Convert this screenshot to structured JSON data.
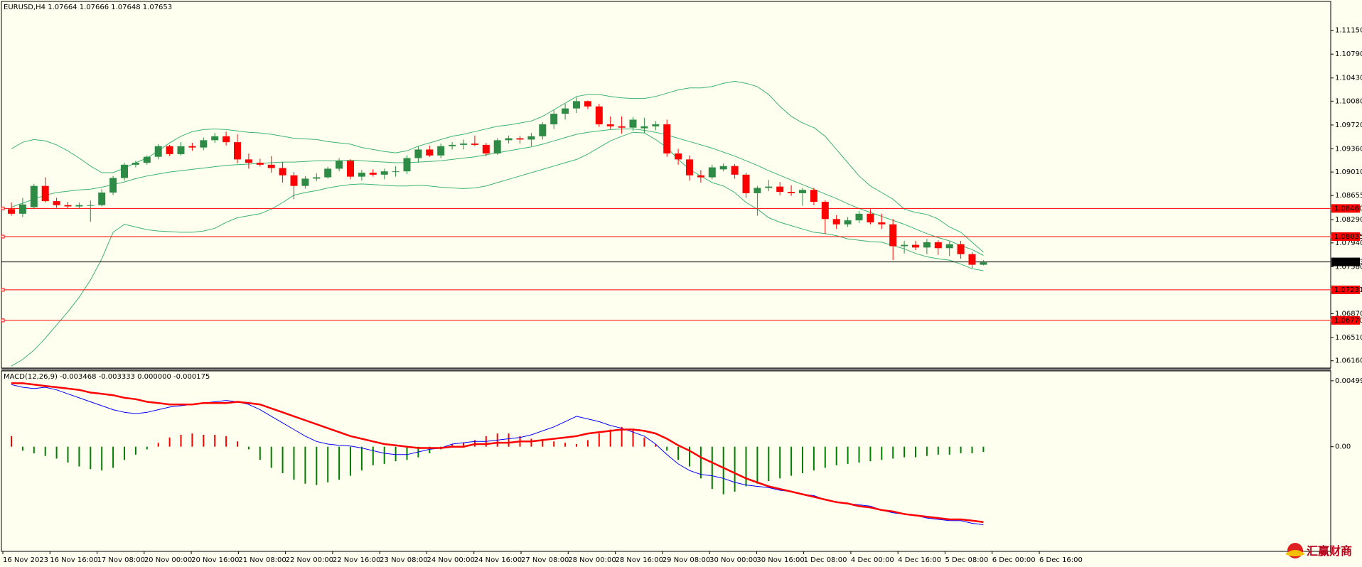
{
  "symbol_header": "EURUSD,H4  1.07664 1.07666 1.07648 1.07653",
  "macd_header": "MACD(12,26,9) -0.003468 -0.003333 0.000000 -0.000175",
  "brand_logo_text": "汇赢财商",
  "colors": {
    "background": "#fffff0",
    "bull": "#2e8b45",
    "bear": "#ff0000",
    "bands": "#3cb371",
    "level": "#ff0000",
    "macd_line": "#0000ff",
    "signal_line": "#ff0000",
    "hist_pos": "#ff0000",
    "hist_neg": "#008000"
  },
  "chart_data": [
    {
      "type": "candlestick",
      "name": "EURUSD,H4",
      "x_labels": [
        "16 Nov 2023",
        "16 Nov 16:00",
        "17 Nov 08:00",
        "20 Nov 00:00",
        "20 Nov 16:00",
        "21 Nov 08:00",
        "22 Nov 00:00",
        "22 Nov 16:00",
        "23 Nov 08:00",
        "24 Nov 00:00",
        "24 Nov 16:00",
        "27 Nov 08:00",
        "28 Nov 00:00",
        "28 Nov 16:00",
        "29 Nov 08:00",
        "30 Nov 00:00",
        "30 Nov 16:00",
        "1 Dec 08:00",
        "4 Dec 00:00",
        "4 Dec 16:00",
        "5 Dec 08:00",
        "6 Dec 00:00",
        "6 Dec 16:00"
      ],
      "y_ticks": [
        "1.11150",
        "1.10790",
        "1.10430",
        "1.10080",
        "1.09720",
        "1.09360",
        "1.09010",
        "1.08655",
        "1.08290",
        "1.07940",
        "1.07580",
        "1.06870",
        "1.06510",
        "1.06160"
      ],
      "ylim": [
        1.0605,
        1.115
      ],
      "current_price": "1.07653",
      "levels": [
        "1.08460",
        "1.08035",
        "1.07231",
        "1.06770"
      ],
      "candles": [
        [
          1.0845,
          1.0855,
          1.0835,
          1.0838
        ],
        [
          1.0838,
          1.0862,
          1.0833,
          1.0852
        ],
        [
          1.0848,
          1.0883,
          1.0845,
          1.088
        ],
        [
          1.088,
          1.0893,
          1.0855,
          1.0857
        ],
        [
          1.0857,
          1.0862,
          1.0847,
          1.0851
        ],
        [
          1.0851,
          1.0856,
          1.0846,
          1.0849
        ],
        [
          1.0849,
          1.0855,
          1.0845,
          1.0851
        ],
        [
          1.085,
          1.0858,
          1.0826,
          1.0851
        ],
        [
          1.0851,
          1.0875,
          1.0849,
          1.087
        ],
        [
          1.087,
          1.0895,
          1.0866,
          1.0892
        ],
        [
          1.0892,
          1.0915,
          1.0888,
          1.0912
        ],
        [
          1.0912,
          1.0918,
          1.0908,
          1.0915
        ],
        [
          1.0915,
          1.0926,
          1.0912,
          1.0924
        ],
        [
          1.0924,
          1.0943,
          1.092,
          1.094
        ],
        [
          1.094,
          1.0942,
          1.0925,
          1.0928
        ],
        [
          1.0928,
          1.0946,
          1.0926,
          1.094
        ],
        [
          1.094,
          1.0945,
          1.0933,
          1.0938
        ],
        [
          1.0938,
          1.0953,
          1.0934,
          1.0949
        ],
        [
          1.0949,
          1.096,
          1.0945,
          1.0955
        ],
        [
          1.0955,
          1.0962,
          1.0941,
          1.0946
        ],
        [
          1.0946,
          1.0958,
          1.0914,
          1.092
        ],
        [
          1.092,
          1.0929,
          1.0906,
          1.0915
        ],
        [
          1.0915,
          1.0921,
          1.0909,
          1.0912
        ],
        [
          1.0912,
          1.0925,
          1.09,
          1.0907
        ],
        [
          1.0907,
          1.0916,
          1.0885,
          1.0896
        ],
        [
          1.0896,
          1.0901,
          1.086,
          1.088
        ],
        [
          1.088,
          1.0895,
          1.0876,
          1.0891
        ],
        [
          1.0891,
          1.0899,
          1.0887,
          1.0893
        ],
        [
          1.0893,
          1.0909,
          1.0891,
          1.0906
        ],
        [
          1.0906,
          1.0922,
          1.0902,
          1.0918
        ],
        [
          1.0918,
          1.092,
          1.089,
          1.0894
        ],
        [
          1.0894,
          1.0904,
          1.0888,
          1.09
        ],
        [
          1.09,
          1.0905,
          1.0894,
          1.0897
        ],
        [
          1.0897,
          1.0906,
          1.089,
          1.0902
        ],
        [
          1.0902,
          1.091,
          1.0894,
          1.0902
        ],
        [
          1.0902,
          1.0926,
          1.0898,
          1.0922
        ],
        [
          1.0922,
          1.094,
          1.0915,
          1.0935
        ],
        [
          1.0935,
          1.0941,
          1.0924,
          1.0926
        ],
        [
          1.0926,
          1.0944,
          1.0922,
          1.094
        ],
        [
          1.094,
          1.0946,
          1.0935,
          1.0942
        ],
        [
          1.0942,
          1.095,
          1.0935,
          1.0944
        ],
        [
          1.0944,
          1.0956,
          1.094,
          1.0942
        ],
        [
          1.0942,
          1.0945,
          1.0925,
          1.0929
        ],
        [
          1.0929,
          1.0952,
          1.0927,
          1.0949
        ],
        [
          1.0949,
          1.0956,
          1.0944,
          1.0952
        ],
        [
          1.0952,
          1.0956,
          1.0944,
          1.095
        ],
        [
          1.095,
          1.096,
          1.094,
          1.0955
        ],
        [
          1.0955,
          1.0976,
          1.095,
          1.0973
        ],
        [
          1.0973,
          1.0995,
          1.0966,
          1.0989
        ],
        [
          1.0989,
          1.1004,
          1.098,
          1.0997
        ],
        [
          1.0997,
          1.1014,
          1.099,
          1.1008
        ],
        [
          1.1008,
          1.1009,
          1.0996,
          1.1
        ],
        [
          1.1,
          1.1004,
          1.0969,
          1.0973
        ],
        [
          1.0973,
          1.0985,
          1.0966,
          1.097
        ],
        [
          1.097,
          1.0985,
          1.0959,
          1.0968
        ],
        [
          1.0968,
          1.0984,
          1.0963,
          1.098
        ],
        [
          1.0967,
          1.0983,
          1.096,
          1.097
        ],
        [
          1.097,
          1.0978,
          1.0964,
          1.0973
        ],
        [
          1.0973,
          1.098,
          1.0924,
          1.0929
        ],
        [
          1.0929,
          1.0936,
          1.0912,
          1.092
        ],
        [
          1.092,
          1.0926,
          1.0888,
          1.0896
        ],
        [
          1.0896,
          1.0904,
          1.0885,
          1.0893
        ],
        [
          1.0893,
          1.0912,
          1.089,
          1.0908
        ],
        [
          1.0905,
          1.0914,
          1.0902,
          1.091
        ],
        [
          1.091,
          1.0913,
          1.0891,
          1.0897
        ],
        [
          1.0897,
          1.09,
          1.0862,
          1.0869
        ],
        [
          1.0869,
          1.088,
          1.0835,
          1.0877
        ],
        [
          1.0877,
          1.0889,
          1.0872,
          1.0879
        ],
        [
          1.0879,
          1.0886,
          1.0866,
          1.0871
        ],
        [
          1.0871,
          1.0881,
          1.0865,
          1.0869
        ],
        [
          1.0869,
          1.0877,
          1.085,
          1.0874
        ],
        [
          1.0874,
          1.0877,
          1.0851,
          1.0856
        ],
        [
          1.0856,
          1.0858,
          1.0808,
          1.083
        ],
        [
          1.083,
          1.0836,
          1.0815,
          1.0822
        ],
        [
          1.0822,
          1.0833,
          1.0818,
          1.0828
        ],
        [
          1.0828,
          1.0842,
          1.0824,
          1.0838
        ],
        [
          1.0838,
          1.0845,
          1.0822,
          1.0825
        ],
        [
          1.0825,
          1.0838,
          1.0815,
          1.0822
        ],
        [
          1.0822,
          1.083,
          1.0768,
          1.0789
        ],
        [
          1.0789,
          1.0797,
          1.0778,
          1.0791
        ],
        [
          1.0791,
          1.0797,
          1.0783,
          1.0787
        ],
        [
          1.0787,
          1.08,
          1.0777,
          1.0795
        ],
        [
          1.0795,
          1.0798,
          1.0776,
          1.0786
        ],
        [
          1.0786,
          1.0796,
          1.0774,
          1.0792
        ],
        [
          1.0792,
          1.0797,
          1.077,
          1.0777
        ],
        [
          1.0777,
          1.078,
          1.0756,
          1.0761
        ],
        [
          1.0761,
          1.0768,
          1.076,
          1.0765
        ]
      ],
      "bollinger": {
        "upper": [
          1.0936,
          1.0946,
          1.095,
          1.0948,
          1.0942,
          1.0933,
          1.0922,
          1.091,
          1.09,
          1.09,
          1.0907,
          1.0915,
          1.0922,
          1.0933,
          1.0945,
          1.0955,
          1.0962,
          1.0965,
          1.0966,
          1.0965,
          1.0963,
          1.0961,
          1.096,
          1.0958,
          1.0955,
          1.0952,
          1.0951,
          1.095,
          1.0947,
          1.0945,
          1.0943,
          1.0938,
          1.0935,
          1.0932,
          1.093,
          1.0933,
          1.094,
          1.0945,
          1.095,
          1.0955,
          1.0958,
          1.0962,
          1.0966,
          1.097,
          1.0972,
          1.0975,
          1.0978,
          1.0985,
          1.0995,
          1.1005,
          1.1015,
          1.1018,
          1.1018,
          1.1015,
          1.1013,
          1.1012,
          1.1012,
          1.1015,
          1.102,
          1.1025,
          1.1028,
          1.1028,
          1.103,
          1.1035,
          1.1038,
          1.1035,
          1.103,
          1.1018,
          1.1,
          1.0985,
          1.0975,
          1.0968,
          1.0955,
          1.0935,
          1.0915,
          1.0895,
          1.088,
          1.087,
          1.086,
          1.0845,
          1.084,
          1.0837,
          1.083,
          1.0818,
          1.081,
          1.0795,
          1.078
        ],
        "middle": [
          1.0848,
          1.0854,
          1.086,
          1.0866,
          1.087,
          1.0872,
          1.0874,
          1.0875,
          1.0878,
          1.0882,
          1.0886,
          1.0891,
          1.0895,
          1.0898,
          1.0901,
          1.0903,
          1.0905,
          1.0907,
          1.0909,
          1.0911,
          1.0912,
          1.0913,
          1.0914,
          1.0915,
          1.0916,
          1.0916,
          1.0917,
          1.0918,
          1.0918,
          1.0918,
          1.0919,
          1.0918,
          1.0917,
          1.0916,
          1.0915,
          1.0915,
          1.0916,
          1.0917,
          1.0918,
          1.092,
          1.0922,
          1.0924,
          1.0927,
          1.093,
          1.0933,
          1.0936,
          1.0939,
          1.0943,
          1.0948,
          1.0953,
          1.0958,
          1.0961,
          1.0963,
          1.0965,
          1.0966,
          1.0966,
          1.0964,
          1.0961,
          1.0957,
          1.0952,
          1.0947,
          1.0942,
          1.0937,
          1.0931,
          1.0925,
          1.0918,
          1.0911,
          1.0903,
          1.0896,
          1.0889,
          1.0882,
          1.0875,
          1.0868,
          1.0861,
          1.0853,
          1.0846,
          1.084,
          1.0834,
          1.0828,
          1.0822,
          1.0815,
          1.0808,
          1.0802,
          1.0797,
          1.079,
          1.0784,
          1.0775
        ],
        "lower": [
          1.0608,
          1.0618,
          1.0632,
          1.065,
          1.067,
          1.069,
          1.0712,
          1.0738,
          1.077,
          1.081,
          1.0822,
          1.0818,
          1.0814,
          1.0812,
          1.0811,
          1.081,
          1.081,
          1.0812,
          1.0816,
          1.0825,
          1.0832,
          1.0835,
          1.0838,
          1.0845,
          1.0855,
          1.0866,
          1.087,
          1.0873,
          1.0877,
          1.088,
          1.0882,
          1.0883,
          1.0882,
          1.0881,
          1.088,
          1.088,
          1.0881,
          1.088,
          1.0878,
          1.0877,
          1.0876,
          1.0877,
          1.088,
          1.0885,
          1.089,
          1.0895,
          1.09,
          1.0905,
          1.091,
          1.0915,
          1.092,
          1.0928,
          1.0938,
          1.0948,
          1.0955,
          1.0961,
          1.096,
          1.095,
          1.0938,
          1.092,
          1.0905,
          1.0895,
          1.0885,
          1.088,
          1.087,
          1.0855,
          1.0845,
          1.0832,
          1.0825,
          1.082,
          1.0815,
          1.081,
          1.0808,
          1.0805,
          1.08,
          1.0798,
          1.0796,
          1.0795,
          1.079,
          1.0785,
          1.0778,
          1.0773,
          1.077,
          1.0768,
          1.0762,
          1.0755,
          1.0752
        ]
      }
    },
    {
      "type": "line",
      "name": "MACD(12,26,9)",
      "y_ticks": [
        "0.004992",
        "0.00"
      ],
      "ylim": [
        -0.0076,
        0.0052
      ],
      "series": [
        {
          "name": "",
          "values": [
            0.0047,
            0.0045,
            0.0044,
            0.0045,
            0.0043,
            0.004,
            0.0037,
            0.0034,
            0.0031,
            0.0028,
            0.0026,
            0.0025,
            0.0026,
            0.0028,
            0.003,
            0.0031,
            0.0032,
            0.0033,
            0.0034,
            0.0035,
            0.0034,
            0.0032,
            0.0028,
            0.0023,
            0.0018,
            0.0013,
            0.0008,
            0.0004,
            0.0002,
            0.0001,
            5e-05,
            -0.0001,
            -0.0003,
            -0.0005,
            -0.0006,
            -0.0006,
            -0.0004,
            -0.0002,
            -0.0001,
            0.0002,
            0.0003,
            0.0004,
            0.0004,
            0.0005,
            0.0006,
            0.0007,
            0.0009,
            0.0012,
            0.0015,
            0.0019,
            0.0023,
            0.0021,
            0.0019,
            0.0016,
            0.0014,
            0.0011,
            0.0008,
            0.0002,
            -0.0006,
            -0.0013,
            -0.0018,
            -0.0021,
            -0.0022,
            -0.0024,
            -0.0027,
            -0.0029,
            -0.003,
            -0.0031,
            -0.0033,
            -0.0034,
            -0.0036,
            -0.0037,
            -0.004,
            -0.0042,
            -0.0043,
            -0.0044,
            -0.0045,
            -0.0048,
            -0.005,
            -0.0051,
            -0.0052,
            -0.0054,
            -0.0055,
            -0.0056,
            -0.0056,
            -0.0058,
            -0.0059
          ]
        },
        {
          "name": "",
          "values": [
            0.0048,
            0.0048,
            0.0047,
            0.0046,
            0.0045,
            0.0044,
            0.0043,
            0.0041,
            0.004,
            0.0039,
            0.0037,
            0.0036,
            0.0034,
            0.0033,
            0.0032,
            0.0032,
            0.0032,
            0.0033,
            0.0033,
            0.0033,
            0.0034,
            0.0033,
            0.0032,
            0.0029,
            0.0026,
            0.0023,
            0.002,
            0.0017,
            0.0014,
            0.0011,
            0.0008,
            0.0006,
            0.0004,
            0.0002,
            0.0001,
            0.0,
            -0.0001,
            -0.0001,
            -0.0001,
            0.0,
            0.0,
            0.0002,
            0.0002,
            0.0003,
            0.0003,
            0.0004,
            0.0004,
            0.0005,
            0.0006,
            0.0007,
            0.0008,
            0.001,
            0.0011,
            0.0012,
            0.0013,
            0.0013,
            0.0012,
            0.001,
            0.0006,
            0.0001,
            -0.0003,
            -0.0008,
            -0.0012,
            -0.0016,
            -0.002,
            -0.0024,
            -0.0027,
            -0.003,
            -0.0032,
            -0.0034,
            -0.0036,
            -0.0038,
            -0.004,
            -0.0042,
            -0.0043,
            -0.0045,
            -0.0046,
            -0.0048,
            -0.0049,
            -0.0051,
            -0.0052,
            -0.0053,
            -0.0054,
            -0.0055,
            -0.0055,
            -0.0056,
            -0.0057
          ]
        }
      ],
      "histogram": [
        0.0008,
        -0.0003,
        -0.0005,
        -0.0007,
        -0.0009,
        -0.0012,
        -0.0015,
        -0.0017,
        -0.0018,
        -0.0016,
        -0.001,
        -0.0006,
        -0.0002,
        0.0003,
        0.0007,
        0.0009,
        0.001,
        0.0009,
        0.0009,
        0.0008,
        0.0004,
        -0.0002,
        -0.001,
        -0.0016,
        -0.002,
        -0.0025,
        -0.0028,
        -0.0029,
        -0.0027,
        -0.0025,
        -0.0022,
        -0.0018,
        -0.0014,
        -0.0013,
        -0.0011,
        -0.001,
        -0.0008,
        -0.0005,
        -0.0002,
        0.0002,
        0.0003,
        0.0005,
        0.0008,
        0.001,
        0.001,
        0.0008,
        0.0006,
        0.0005,
        0.0004,
        0.0003,
        0.0002,
        0.0005,
        0.001,
        0.0013,
        0.0015,
        0.0013,
        0.0007,
        0.0002,
        -0.0003,
        -0.001,
        -0.0015,
        -0.0024,
        -0.0032,
        -0.0036,
        -0.0034,
        -0.003,
        -0.0028,
        -0.0026,
        -0.0024,
        -0.0022,
        -0.002,
        -0.0018,
        -0.0016,
        -0.0014,
        -0.0013,
        -0.0012,
        -0.0011,
        -0.001,
        -0.0009,
        -0.0008,
        -0.0008,
        -0.0007,
        -0.0006,
        -0.0006,
        -0.0005,
        -0.0005,
        -0.0004
      ]
    }
  ]
}
